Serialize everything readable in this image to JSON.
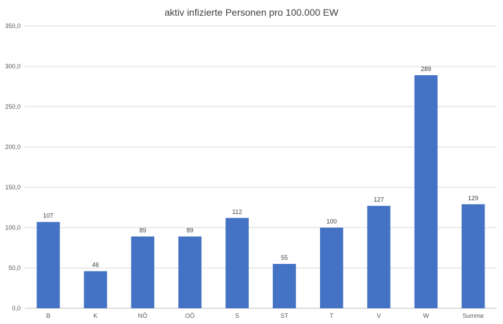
{
  "chart_data": {
    "type": "bar",
    "title": "aktiv infizierte Personen pro 100.000 EW",
    "xlabel": "",
    "ylabel": "",
    "categories": [
      "B",
      "K",
      "NÖ",
      "OÖ",
      "S",
      "ST",
      "T",
      "V",
      "W",
      "Summe"
    ],
    "values": [
      107,
      46,
      89,
      89,
      112,
      55,
      100,
      127,
      289,
      129
    ],
    "data_labels": [
      "107",
      "46",
      "89",
      "89",
      "112",
      "55",
      "100",
      "127",
      "289",
      "129"
    ],
    "ylim": [
      0,
      350
    ],
    "yticks": [
      0,
      50,
      100,
      150,
      200,
      250,
      300,
      350
    ],
    "ytick_labels": [
      "0,0",
      "50,0",
      "100,0",
      "150,0",
      "200,0",
      "250,0",
      "300,0",
      "350,0"
    ],
    "grid": true,
    "legend": "none",
    "colors": {
      "bar": "#4472C4",
      "grid": "#D9D9D9",
      "axis": "#BFBFBF"
    }
  }
}
